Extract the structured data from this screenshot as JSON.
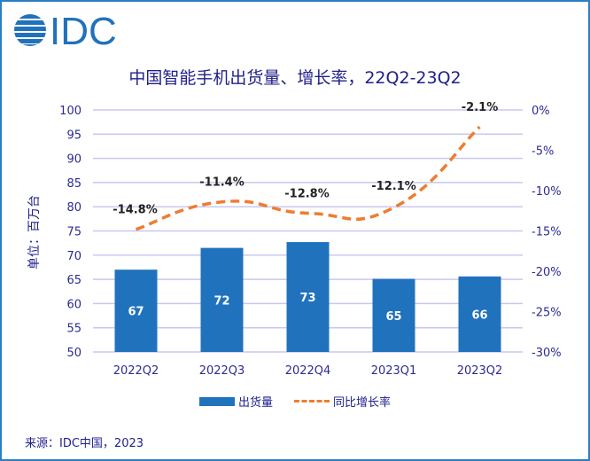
{
  "logo_text": "IDC",
  "colors": {
    "bar": "#2072bc",
    "line": "#ed7d31",
    "text": "#1f1f8c",
    "grid": "#c8c8f0",
    "border": "#2a7fc4"
  },
  "chart_data": {
    "type": "bar",
    "title": "中国智能手机出货量、增长率，22Q2-23Q2",
    "ylabel": "单位：百万台",
    "categories": [
      "2022Q2",
      "2022Q3",
      "2022Q4",
      "2023Q1",
      "2023Q2"
    ],
    "ylim": [
      50,
      100
    ],
    "yticks": [
      "100",
      "95",
      "90",
      "85",
      "80",
      "75",
      "70",
      "65",
      "60",
      "55",
      "50"
    ],
    "y2lim": [
      -30,
      0
    ],
    "y2ticks": [
      "0%",
      "-5%",
      "-10%",
      "-15%",
      "-20%",
      "-25%",
      "-30%"
    ],
    "grid": true,
    "legend_position": "bottom",
    "series": [
      {
        "name": "出货量",
        "type": "bar",
        "values": [
          67.0,
          71.5,
          72.7,
          65.1,
          65.6
        ],
        "labels": [
          "67",
          "72",
          "73",
          "65",
          "66"
        ]
      },
      {
        "name": "同比增长率",
        "type": "line",
        "style": "dashed",
        "axis": "right",
        "values": [
          -14.8,
          -11.4,
          -12.8,
          -12.1,
          -2.1
        ],
        "labels": [
          "-14.8%",
          "-11.4%",
          "-12.8%",
          "-12.1%",
          "-2.1%"
        ]
      }
    ]
  },
  "source": "来源：IDC中国，2023"
}
